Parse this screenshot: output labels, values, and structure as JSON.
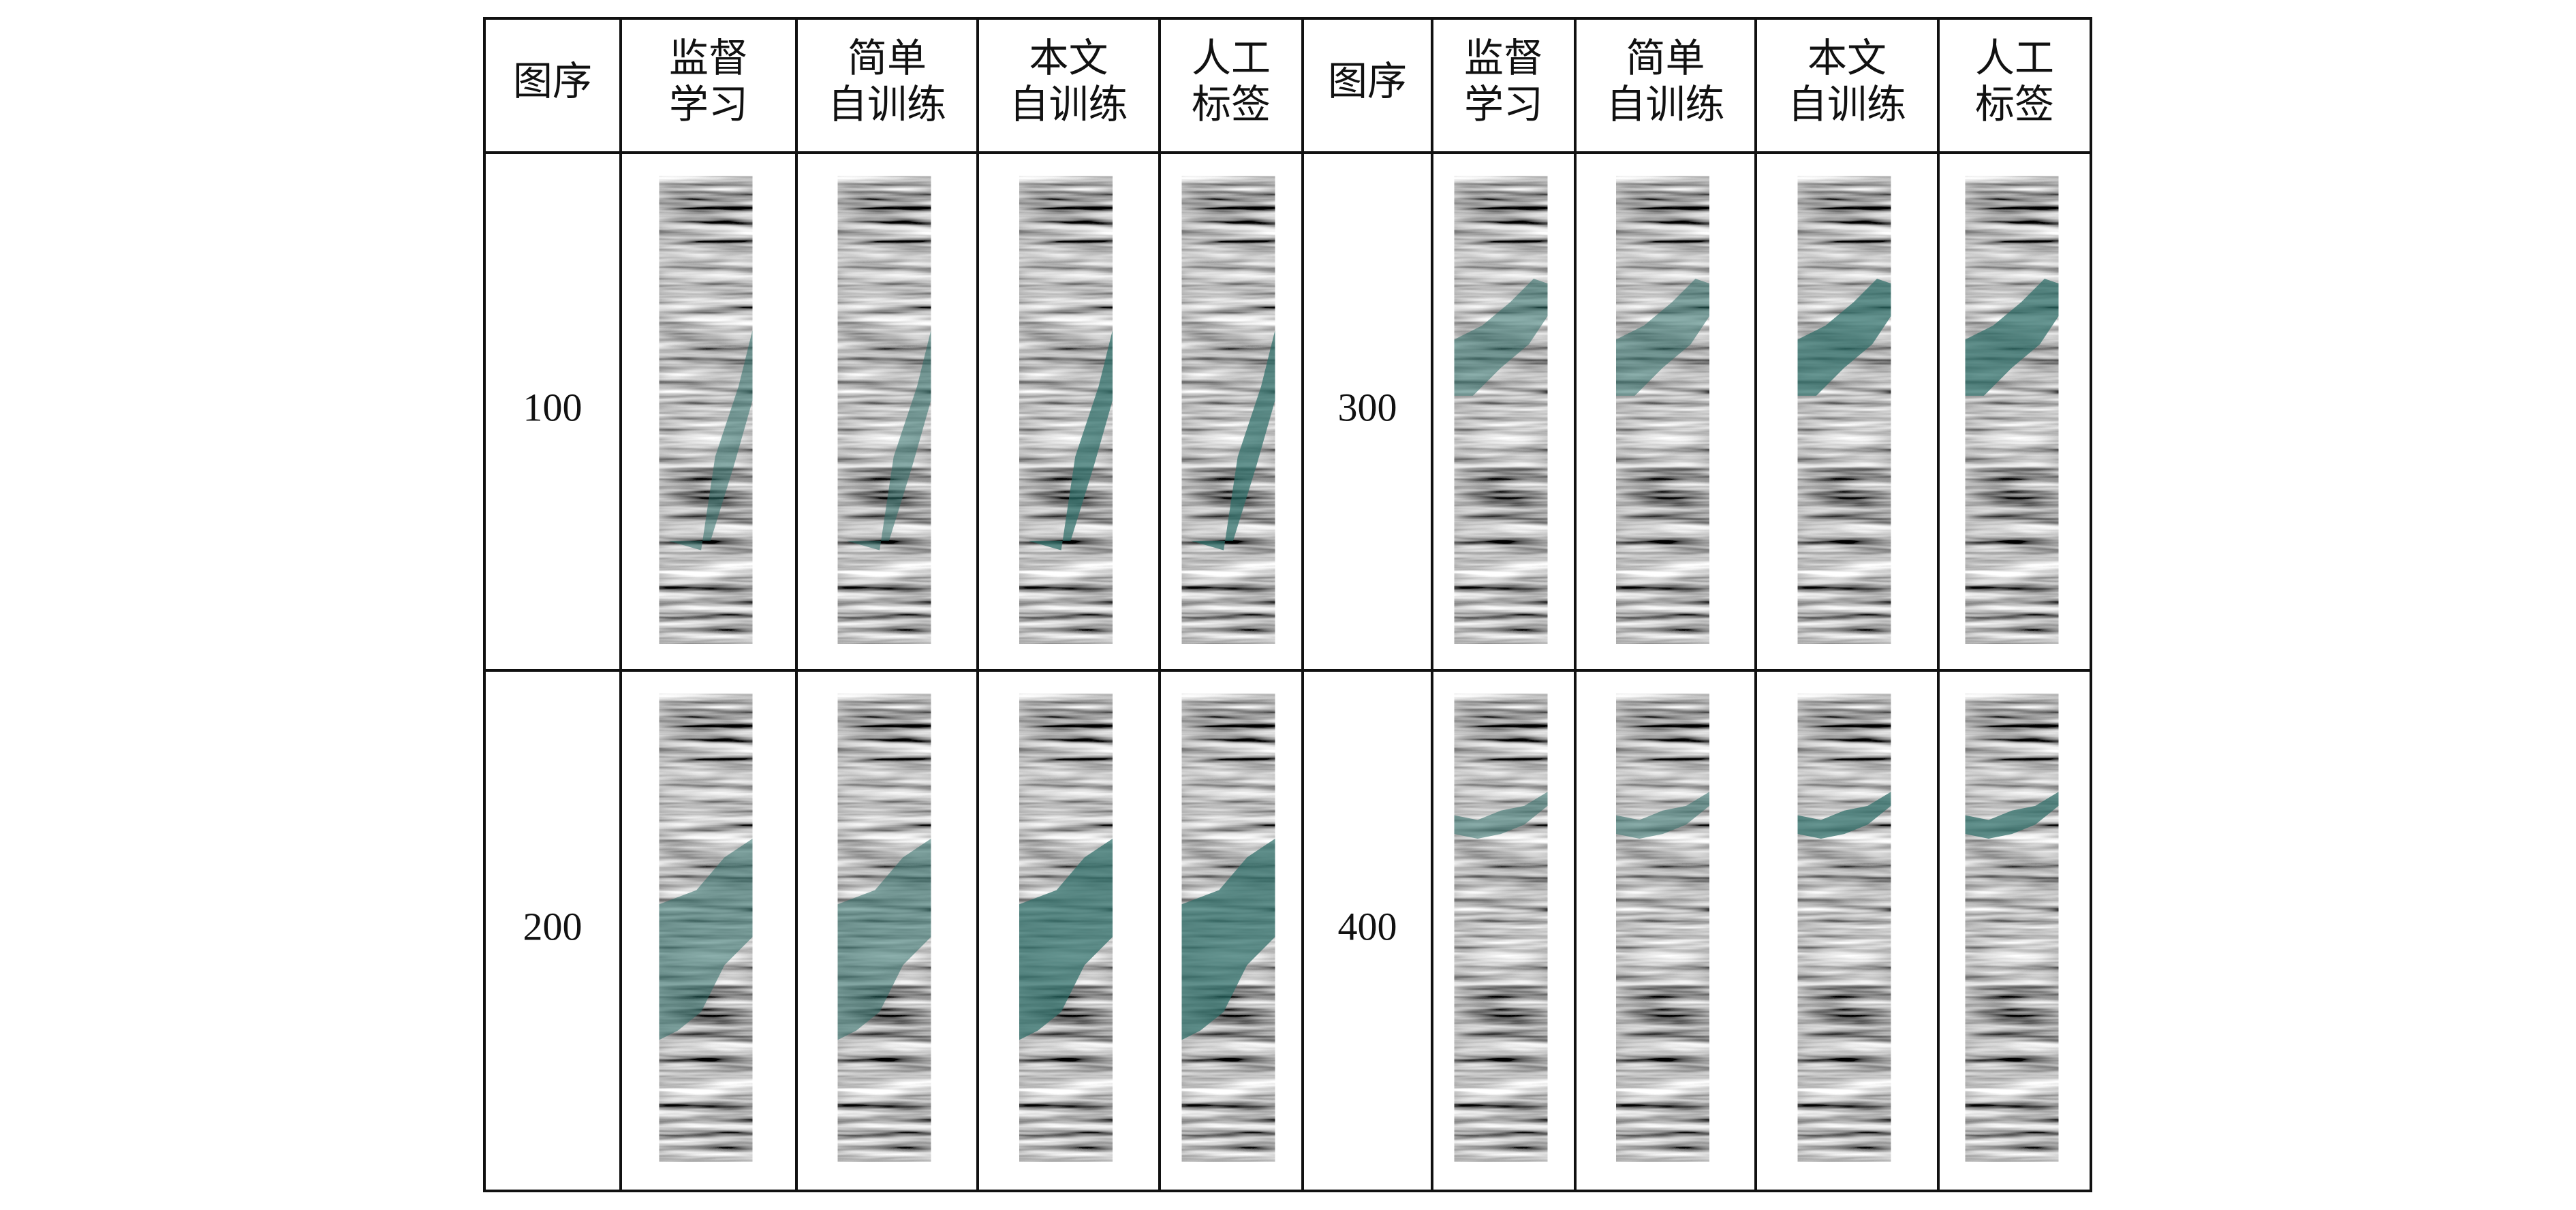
{
  "table": {
    "header": [
      [
        "图序"
      ],
      [
        "监督",
        "学习"
      ],
      [
        "简单",
        "自训练"
      ],
      [
        "本文",
        "自训练"
      ],
      [
        "人工",
        "标签"
      ],
      [
        "图序"
      ],
      [
        "监督",
        "学习"
      ],
      [
        "简单",
        "自训练"
      ],
      [
        "本文",
        "自训练"
      ],
      [
        "人工",
        "标签"
      ]
    ],
    "rows": [
      [
        "100",
        "300"
      ],
      [
        "200",
        "400"
      ]
    ]
  }
}
